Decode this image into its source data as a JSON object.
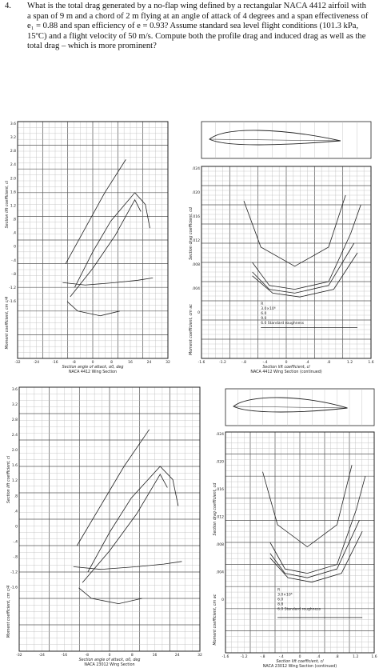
{
  "question": {
    "number": "4.",
    "text": "What is the total drag generated by a no-flap wing defined by a rectangular NACA 4412 airfoil with a span of 9 m and a chord of 2 m flying at an angle of attack of 4 degrees and a span effectiveness of e₁ = 0.88 and span efficiency of e = 0.93?  Assume standard sea level flight conditions (101.3 kPa, 15ºC) and a flight velocity of 50 m/s. Compute both the profile drag and induced drag as well as the total drag – which is more prominent?"
  },
  "figures": [
    {
      "caption": "NACA 4412 Wing Section",
      "y_label": "Section lift coefficient, cl",
      "y2_label": "Moment coefficient, cm c/4",
      "x_label": "Section angle of attack, α0, deg",
      "y_ticks": [
        "3.6",
        "3.2",
        "2.8",
        "2.4",
        "2.0",
        "1.6",
        "1.2",
        ".8",
        ".4",
        "0",
        "-.4",
        "-.8",
        "-1.2",
        "-1.6"
      ],
      "x_ticks": [
        "-32",
        "-24",
        "-16",
        "-8",
        "0",
        "8",
        "16",
        "24",
        "32"
      ]
    },
    {
      "caption": "NACA 4412 Wing Section (continued)",
      "y_label": "Section drag coefficient, cd",
      "y2_label": "Moment coefficient, cm ac",
      "x_label": "Section lift coefficient, cl",
      "y_ticks": [
        ".024",
        ".020",
        ".016",
        ".012",
        ".008",
        ".004",
        "0"
      ],
      "x_ticks": [
        "-1.6",
        "-1.2",
        "-.8",
        "-.4",
        "0",
        ".4",
        ".8",
        "1.2",
        "1.6"
      ],
      "legend": [
        "R",
        "3.0×10⁶",
        "6.0",
        "9.0",
        "6.0 Standard roughness"
      ]
    },
    {
      "caption": "NACA 23012 Wing Section",
      "y_label": "Section lift coefficient, cl",
      "y2_label": "Moment coefficient, cm c/4",
      "x_label": "Section angle of attack, α0, deg",
      "y_ticks": [
        "3.6",
        "3.2",
        "2.8",
        "2.4",
        "2.0",
        "1.6",
        "1.2",
        ".8",
        ".4",
        "0",
        "-.4",
        "-.8",
        "-1.2",
        "-1.6"
      ],
      "x_ticks": [
        "-32",
        "-24",
        "-16",
        "-8",
        "0",
        "8",
        "16",
        "24",
        "32"
      ]
    },
    {
      "caption": "NACA 23012 Wing Section (continued)",
      "y_label": "Section drag coefficient, cd",
      "y2_label": "Moment coefficient, cm ac",
      "x_label": "Section lift coefficient, cl",
      "y_ticks": [
        ".024",
        ".020",
        ".016",
        ".012",
        ".008",
        ".004",
        "0"
      ],
      "x_ticks": [
        "-1.6",
        "-1.2",
        "-.8",
        "-.4",
        "0",
        ".4",
        ".8",
        "1.2",
        "1.6"
      ],
      "legend": [
        "R",
        "3.0×10⁶",
        "6.0",
        "8.8",
        "6.0 Standard roughness"
      ]
    }
  ]
}
